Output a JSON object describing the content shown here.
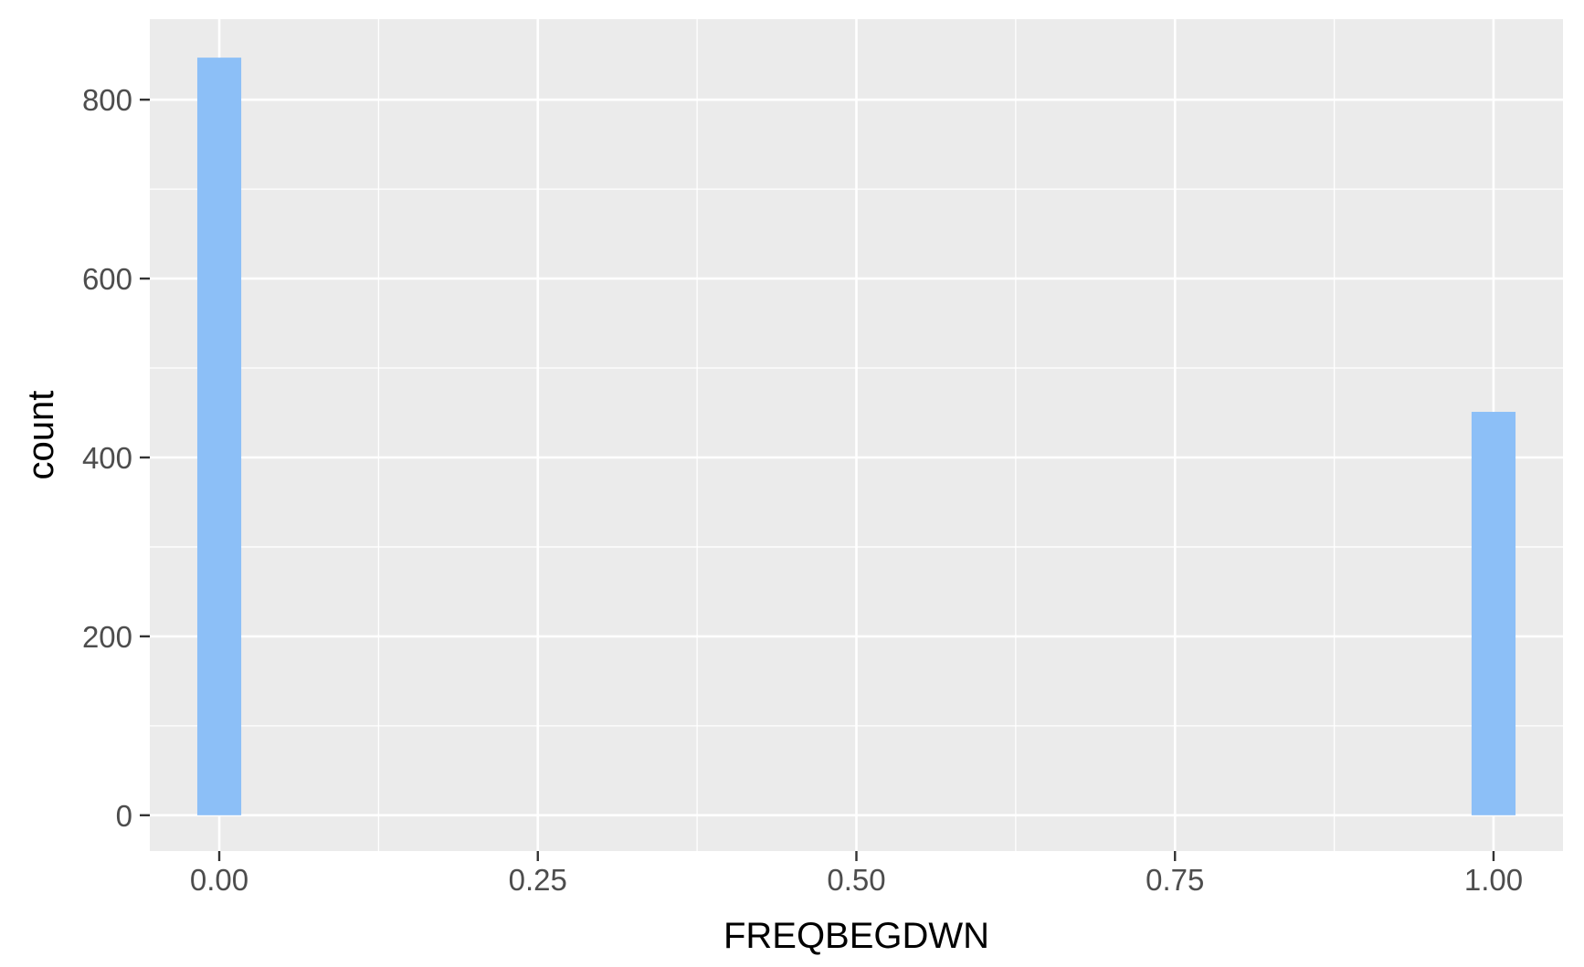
{
  "chart_data": {
    "type": "bar",
    "title": "",
    "xlabel": "FREQBEGDWN",
    "ylabel": "count",
    "xlim": [
      -0.0545,
      1.0545
    ],
    "ylim": [
      -40,
      890
    ],
    "x_ticks": [
      0.0,
      0.25,
      0.5,
      0.75,
      1.0
    ],
    "x_tick_labels": [
      "0.00",
      "0.25",
      "0.50",
      "0.75",
      "1.00"
    ],
    "y_ticks": [
      0,
      200,
      400,
      600,
      800
    ],
    "y_tick_labels": [
      "0",
      "200",
      "400",
      "600",
      "800"
    ],
    "bin_width": 0.0345,
    "bars": [
      {
        "x": 0.0,
        "count": 847
      },
      {
        "x": 1.0,
        "count": 451
      }
    ],
    "grid": true,
    "legend": "none",
    "colors": {
      "bar_fill": "#8cbff7",
      "panel_background": "#ebebeb",
      "grid": "#ffffff"
    }
  }
}
